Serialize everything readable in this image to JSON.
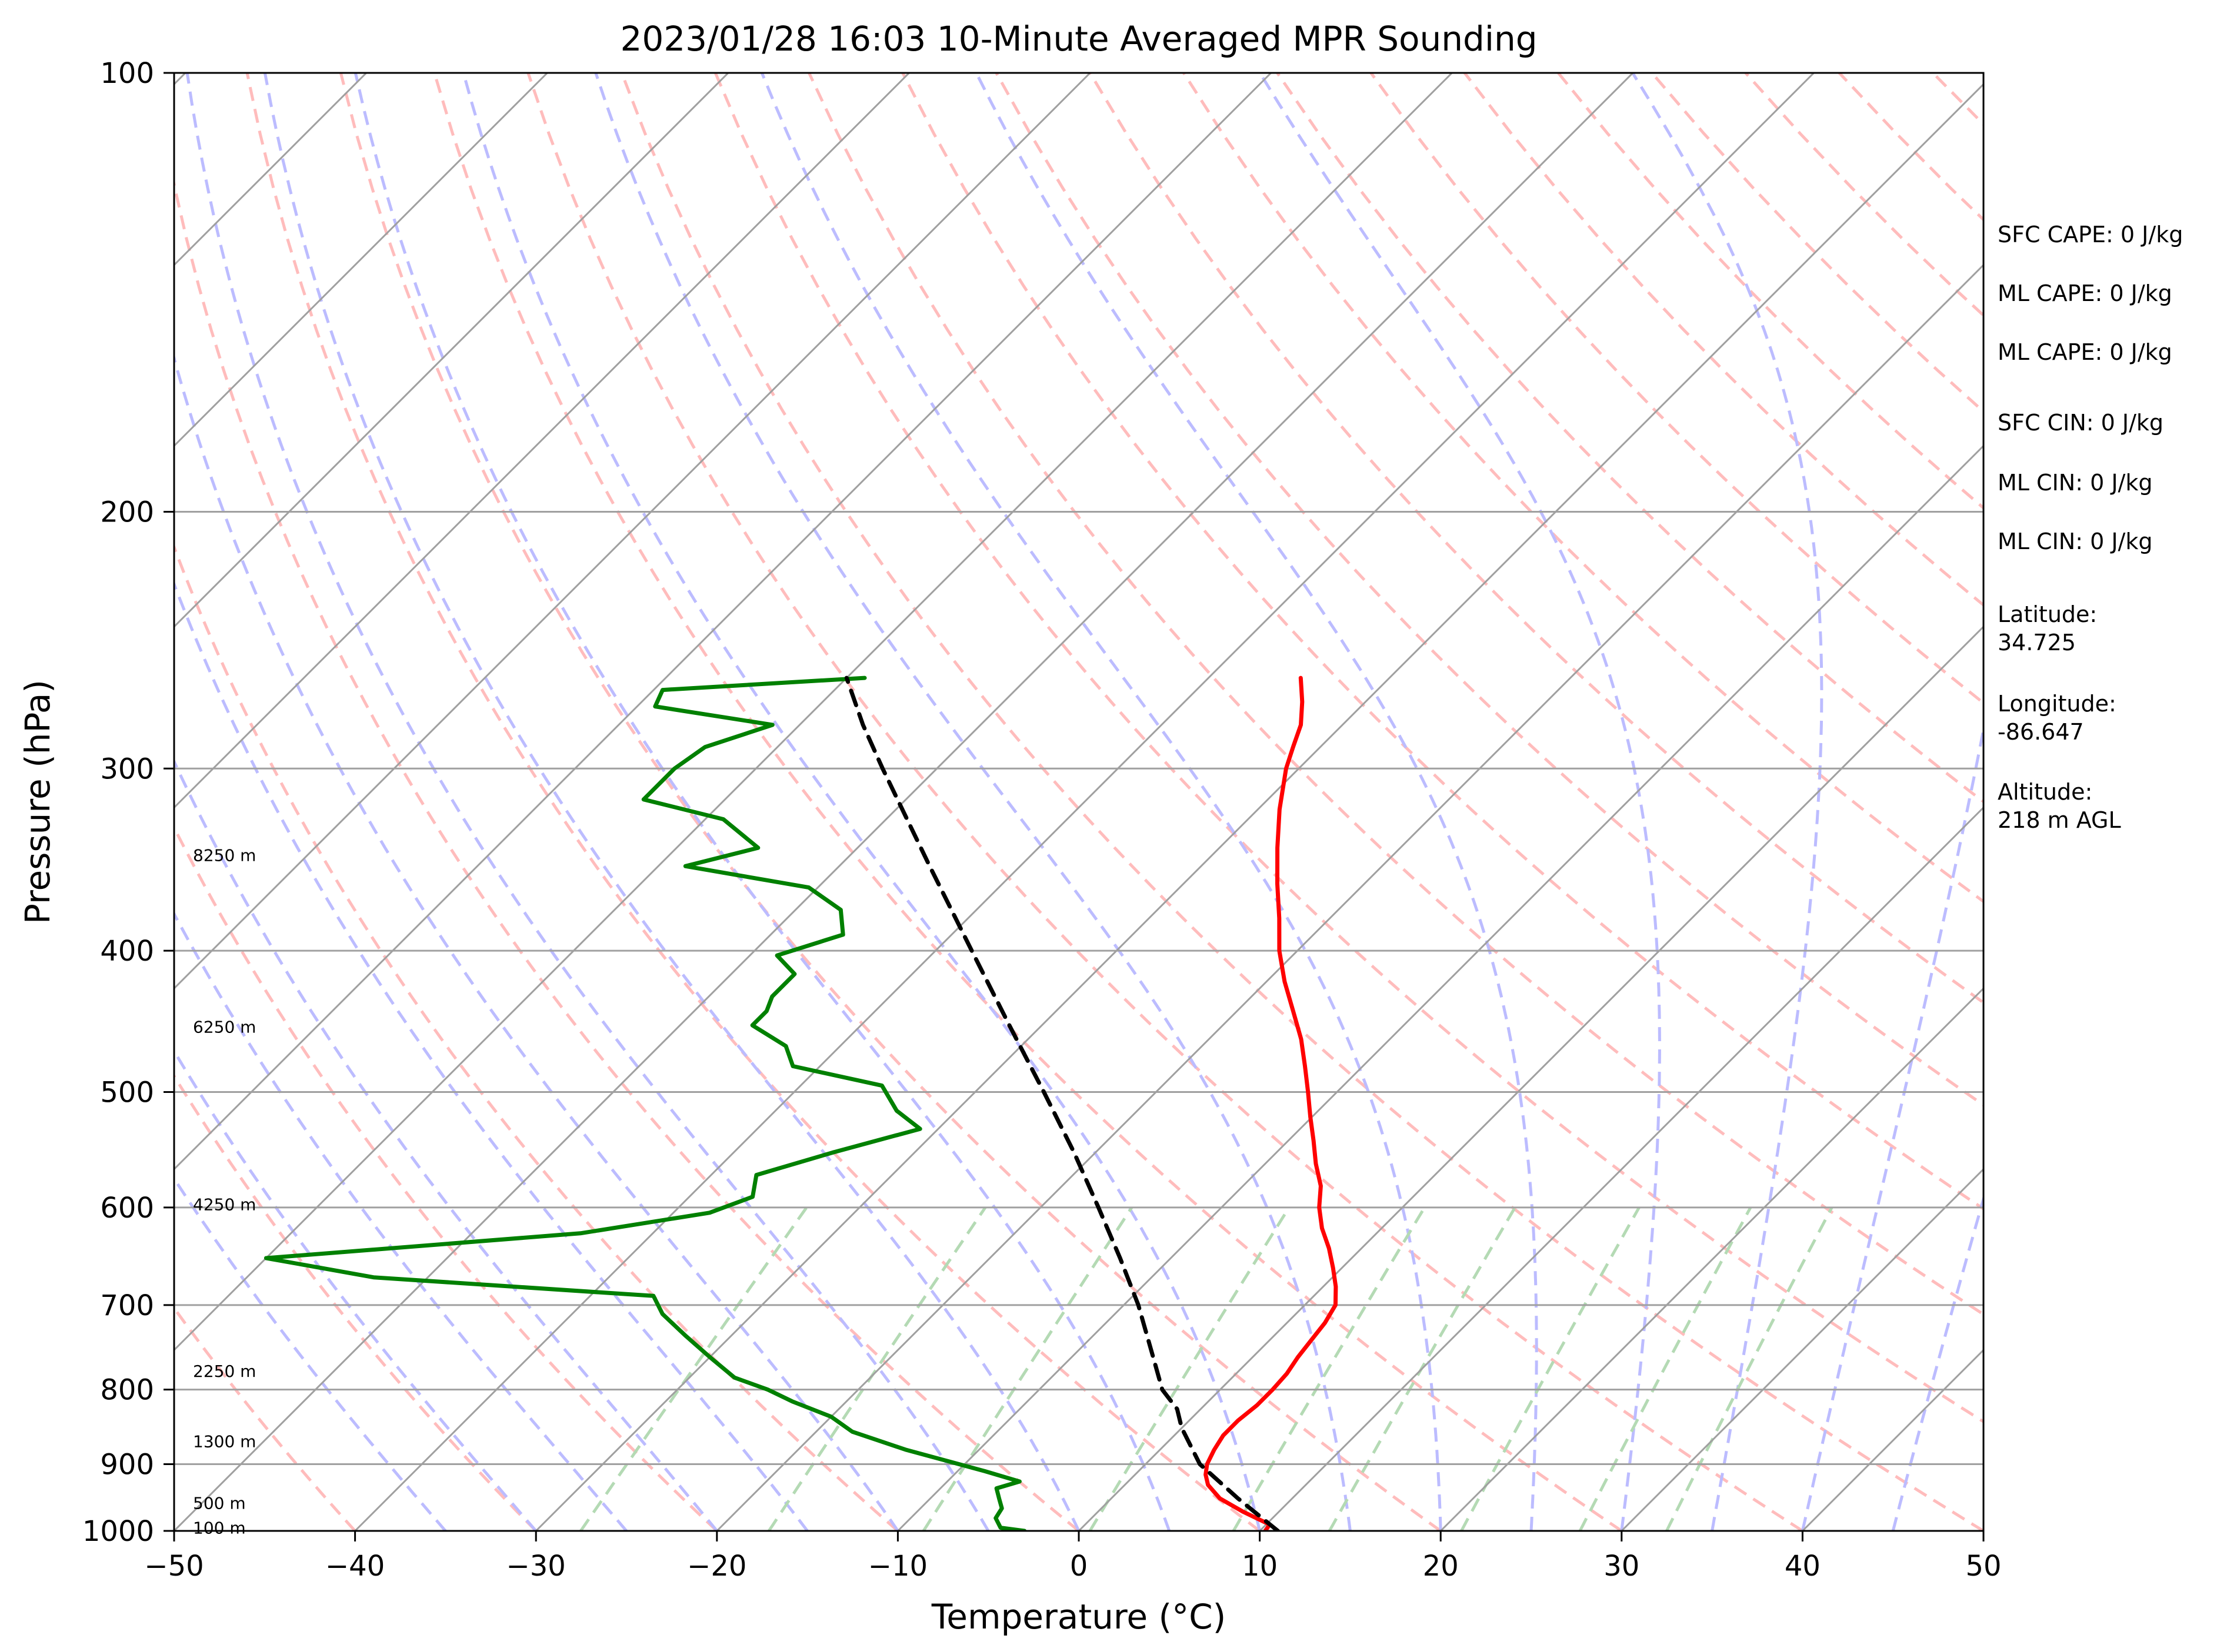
{
  "chart_data": {
    "type": "line",
    "title": "2023/01/28 16:03 10-Minute Averaged MPR Sounding",
    "xlabel": "Temperature (°C)",
    "ylabel": "Pressure (hPa)",
    "x_ticks": [
      -50,
      -40,
      -30,
      -20,
      -10,
      0,
      10,
      20,
      30,
      40,
      50
    ],
    "y_ticks": [
      100,
      200,
      300,
      400,
      500,
      600,
      700,
      800,
      900,
      1000
    ],
    "xlim": [
      -50,
      50
    ],
    "ylim": [
      1000,
      100
    ],
    "y_scale": "log",
    "skew": "skew-T log-P",
    "grid": true,
    "colors": {
      "temperature": "#ff0000",
      "dewpoint": "#008000",
      "parcel": "#000000",
      "isotherm": "#a0a0a0",
      "dry_adiabat": "#ffbcbc",
      "moist_adiabat": "#bcbcff",
      "mixing_ratio": "#b4dab4"
    },
    "series": [
      {
        "style": "solid",
        "color": "#ff0000",
        "points": [
          {
            "p": 1000,
            "t": 10.3
          },
          {
            "p": 990,
            "t": 10.2
          },
          {
            "p": 970,
            "t": 8.0
          },
          {
            "p": 950,
            "t": 6.0
          },
          {
            "p": 930,
            "t": 4.6
          },
          {
            "p": 915,
            "t": 3.9
          },
          {
            "p": 900,
            "t": 3.4
          },
          {
            "p": 880,
            "t": 3.0
          },
          {
            "p": 860,
            "t": 2.7
          },
          {
            "p": 840,
            "t": 2.7
          },
          {
            "p": 820,
            "t": 2.9
          },
          {
            "p": 800,
            "t": 2.9
          },
          {
            "p": 780,
            "t": 2.8
          },
          {
            "p": 760,
            "t": 2.5
          },
          {
            "p": 740,
            "t": 2.3
          },
          {
            "p": 720,
            "t": 2.1
          },
          {
            "p": 700,
            "t": 1.7
          },
          {
            "p": 680,
            "t": 0.7
          },
          {
            "p": 660,
            "t": -0.5
          },
          {
            "p": 640,
            "t": -1.8
          },
          {
            "p": 620,
            "t": -3.3
          },
          {
            "p": 600,
            "t": -4.6
          },
          {
            "p": 580,
            "t": -5.7
          },
          {
            "p": 560,
            "t": -7.2
          },
          {
            "p": 540,
            "t": -8.6
          },
          {
            "p": 520,
            "t": -10.1
          },
          {
            "p": 500,
            "t": -11.6
          },
          {
            "p": 480,
            "t": -13.2
          },
          {
            "p": 460,
            "t": -14.9
          },
          {
            "p": 440,
            "t": -16.9
          },
          {
            "p": 420,
            "t": -19.0
          },
          {
            "p": 400,
            "t": -21.0
          },
          {
            "p": 380,
            "t": -22.8
          },
          {
            "p": 360,
            "t": -24.8
          },
          {
            "p": 340,
            "t": -26.8
          },
          {
            "p": 320,
            "t": -28.8
          },
          {
            "p": 300,
            "t": -30.7
          },
          {
            "p": 290,
            "t": -31.5
          },
          {
            "p": 280,
            "t": -32.3
          },
          {
            "p": 270,
            "t": -33.5
          },
          {
            "p": 260,
            "t": -34.9
          }
        ]
      },
      {
        "style": "solid",
        "color": "#008000",
        "points": [
          {
            "p": 1000,
            "t": -3.0
          },
          {
            "p": 995,
            "t": -4.5
          },
          {
            "p": 980,
            "t": -5.3
          },
          {
            "p": 965,
            "t": -5.5
          },
          {
            "p": 950,
            "t": -6.2
          },
          {
            "p": 935,
            "t": -6.9
          },
          {
            "p": 925,
            "t": -6.0
          },
          {
            "p": 910,
            "t": -8.5
          },
          {
            "p": 880,
            "t": -14.0
          },
          {
            "p": 855,
            "t": -18.0
          },
          {
            "p": 835,
            "t": -20.0
          },
          {
            "p": 815,
            "t": -23.0
          },
          {
            "p": 800,
            "t": -25.0
          },
          {
            "p": 785,
            "t": -27.5
          },
          {
            "p": 760,
            "t": -30.0
          },
          {
            "p": 735,
            "t": -32.5
          },
          {
            "p": 710,
            "t": -35.0
          },
          {
            "p": 690,
            "t": -36.5
          },
          {
            "p": 670,
            "t": -53.0
          },
          {
            "p": 650,
            "t": -60.0
          },
          {
            "p": 625,
            "t": -44.0
          },
          {
            "p": 605,
            "t": -38.0
          },
          {
            "p": 590,
            "t": -36.5
          },
          {
            "p": 570,
            "t": -37.5
          },
          {
            "p": 550,
            "t": -34.5
          },
          {
            "p": 530,
            "t": -31.0
          },
          {
            "p": 515,
            "t": -33.3
          },
          {
            "p": 495,
            "t": -35.5
          },
          {
            "p": 480,
            "t": -41.5
          },
          {
            "p": 465,
            "t": -43.0
          },
          {
            "p": 450,
            "t": -46.0
          },
          {
            "p": 440,
            "t": -46.0
          },
          {
            "p": 430,
            "t": -46.5
          },
          {
            "p": 415,
            "t": -46.5
          },
          {
            "p": 403,
            "t": -48.5
          },
          {
            "p": 390,
            "t": -46.0
          },
          {
            "p": 375,
            "t": -47.5
          },
          {
            "p": 362,
            "t": -50.5
          },
          {
            "p": 350,
            "t": -58.5
          },
          {
            "p": 340,
            "t": -55.5
          },
          {
            "p": 325,
            "t": -59.0
          },
          {
            "p": 315,
            "t": -64.5
          },
          {
            "p": 300,
            "t": -64.5
          },
          {
            "p": 290,
            "t": -64.0
          },
          {
            "p": 280,
            "t": -61.5
          },
          {
            "p": 272,
            "t": -69.0
          },
          {
            "p": 265,
            "t": -69.5
          },
          {
            "p": 260,
            "t": -59.0
          }
        ]
      },
      {
        "style": "dashed",
        "color": "#000000",
        "points": [
          {
            "p": 1000,
            "t": 11.0
          },
          {
            "p": 950,
            "t": 7.0
          },
          {
            "p": 900,
            "t": 3.0
          },
          {
            "p": 850,
            "t": 0.0
          },
          {
            "p": 825,
            "t": -1.3
          },
          {
            "p": 800,
            "t": -3.2
          },
          {
            "p": 760,
            "t": -5.5
          },
          {
            "p": 700,
            "t": -9.2
          },
          {
            "p": 650,
            "t": -12.8
          },
          {
            "p": 600,
            "t": -16.8
          },
          {
            "p": 550,
            "t": -21.2
          },
          {
            "p": 500,
            "t": -26.2
          },
          {
            "p": 450,
            "t": -31.8
          },
          {
            "p": 400,
            "t": -38.0
          },
          {
            "p": 350,
            "t": -45.0
          },
          {
            "p": 300,
            "t": -53.0
          },
          {
            "p": 280,
            "t": -56.5
          },
          {
            "p": 260,
            "t": -60.0
          }
        ]
      }
    ],
    "height_labels": [
      {
        "p": 995,
        "label": "100 m"
      },
      {
        "p": 957,
        "label": "500 m"
      },
      {
        "p": 868,
        "label": "1300 m"
      },
      {
        "p": 777,
        "label": "2250 m"
      },
      {
        "p": 597,
        "label": "4250 m"
      },
      {
        "p": 451,
        "label": "6250 m"
      },
      {
        "p": 344,
        "label": "8250 m"
      }
    ],
    "annotations": [
      [
        "SFC CAPE: 0 J/kg"
      ],
      [
        "ML CAPE: 0 J/kg"
      ],
      [
        "ML CAPE: 0 J/kg"
      ],
      [
        "SFC CIN: 0 J/kg"
      ],
      [
        "ML CIN: 0 J/kg"
      ],
      [
        "ML CIN: 0 J/kg"
      ],
      [
        "Latitude:",
        "34.725"
      ],
      [
        "Longitude:",
        "-86.647"
      ],
      [
        "Altitude:",
        "218 m AGL"
      ]
    ]
  }
}
